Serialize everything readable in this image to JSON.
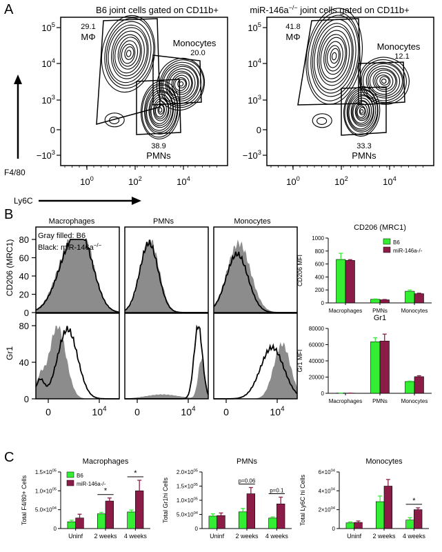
{
  "panels": {
    "A": "A",
    "B": "B",
    "C": "C"
  },
  "colors": {
    "b6": "#33ee33",
    "mir146a": "#8b1c48",
    "histogram_fill": "#8c8c8c",
    "contour": "#000000"
  },
  "section_a": {
    "plots": [
      {
        "title": "B6 joint cells gated on CD11b+",
        "gates": {
          "mphi": {
            "value": "29.1",
            "label": "MΦ"
          },
          "monocytes": {
            "value": "20.0",
            "label": "Monocytes"
          },
          "pmns": {
            "value": "38.9",
            "label": "PMNs"
          }
        }
      },
      {
        "title_prefix": "miR-146a",
        "title_sup": "−/−",
        "title_suffix": " joint cells gated on CD11b+",
        "gates": {
          "mphi": {
            "value": "41.8",
            "label": "MΦ"
          },
          "monocytes": {
            "value": "12.1",
            "label": "Monocytes"
          },
          "pmns": {
            "value": "33.3",
            "label": "PMNs"
          }
        }
      }
    ],
    "y_ticks": [
      {
        "base": "10",
        "exp": "5"
      },
      {
        "base": "10",
        "exp": "4"
      },
      {
        "base": "10",
        "exp": "3"
      },
      {
        "base": "0",
        "exp": ""
      },
      {
        "base": "−10",
        "exp": "3"
      }
    ],
    "x_ticks": [
      {
        "base": "10",
        "exp": "0"
      },
      {
        "base": "10",
        "exp": "2"
      },
      {
        "base": "10",
        "exp": "4"
      }
    ],
    "y_axis_label": "F4/80",
    "x_axis_label": "Ly6C"
  },
  "section_b": {
    "columns": [
      "Macrophages",
      "PMNs",
      "Monocytes"
    ],
    "legend_line1": "Gray filled: B6",
    "legend_line2_prefix": "Black: miR-146a",
    "legend_line2_sup": "−/−",
    "rows": [
      {
        "label": "CD206 (MRC1)",
        "ticks": [
          "80",
          "60",
          "40",
          "20",
          "0"
        ]
      },
      {
        "label": "Gr1",
        "ticks": [
          "80",
          "40",
          "0"
        ]
      }
    ],
    "x_ticks": [
      {
        "base": "0",
        "exp": ""
      },
      {
        "base": "10",
        "exp": "4"
      }
    ]
  },
  "chart_data": [
    {
      "type": "bar",
      "title": "CD206 (MRC1)",
      "ylabel": "CD206 MFI",
      "categories": [
        "Macrophages",
        "PMNs",
        "Monocytes"
      ],
      "ylim": [
        0,
        1000
      ],
      "yticks": [
        0,
        200,
        400,
        600,
        800,
        1000
      ],
      "legend_position": "top-right",
      "series": [
        {
          "name": "B6",
          "values": [
            670,
            55,
            180
          ],
          "errors": [
            95,
            6,
            18
          ]
        },
        {
          "name": "miR-146a-/-",
          "values": [
            655,
            48,
            142
          ],
          "errors": [
            12,
            5,
            8
          ]
        }
      ]
    },
    {
      "type": "bar",
      "title": "Gr1",
      "ylabel": "Gr1 MFI",
      "categories": [
        "Macrophages",
        "PMNs",
        "Monocytes"
      ],
      "ylim": [
        0,
        80000
      ],
      "yticks": [
        0,
        20000,
        40000,
        60000,
        80000
      ],
      "series": [
        {
          "name": "B6",
          "values": [
            300,
            63500,
            14500
          ],
          "errors": [
            60,
            5000,
            600
          ]
        },
        {
          "name": "miR-146a-/-",
          "values": [
            250,
            64500,
            20500
          ],
          "errors": [
            60,
            8500,
            1200
          ]
        }
      ]
    },
    {
      "type": "bar",
      "title": "Macrophages",
      "ylabel": "Total F4/80+ Cells",
      "categories": [
        "Uninf",
        "2 weeks",
        "4 weeks"
      ],
      "ylim": [
        0,
        150000
      ],
      "yticks": [
        0,
        50000,
        100000,
        150000
      ],
      "ytick_labels": [
        "0",
        "5.0×10^04",
        "1.0×10^05",
        "1.5×10^05"
      ],
      "legend_position": "top-left",
      "series": [
        {
          "name": "B6",
          "values": [
            18000,
            39000,
            44000
          ],
          "errors": [
            4000,
            4000,
            5000
          ]
        },
        {
          "name": "miR-146a-/-",
          "values": [
            28000,
            73000,
            100000
          ],
          "errors": [
            10000,
            8000,
            28000
          ]
        }
      ],
      "annotations": [
        {
          "category": "2 weeks",
          "text": "*"
        },
        {
          "category": "4 weeks",
          "text": "*"
        }
      ]
    },
    {
      "type": "bar",
      "title": "PMNs",
      "ylabel": "Total Gr1hi Cells",
      "categories": [
        "Uninf",
        "2 weeks",
        "4 weeks"
      ],
      "ylim": [
        0,
        200000
      ],
      "yticks": [
        0,
        50000,
        100000,
        150000,
        200000
      ],
      "ytick_labels": [
        "0",
        "5.0×10^04",
        "1.0×10^05",
        "1.5×10^05",
        "2.0×10^05"
      ],
      "series": [
        {
          "name": "B6",
          "values": [
            44000,
            59000,
            37000
          ],
          "errors": [
            8000,
            12000,
            4000
          ]
        },
        {
          "name": "miR-146a-/-",
          "values": [
            46000,
            123000,
            87000
          ],
          "errors": [
            9000,
            22000,
            24000
          ]
        }
      ],
      "annotations": [
        {
          "category": "2 weeks",
          "text": "p=0.06"
        },
        {
          "category": "4 weeks",
          "text": "p=0.1"
        }
      ]
    },
    {
      "type": "bar",
      "title": "Monocytes",
      "ylabel": "Total Ly6C hi Cells",
      "categories": [
        "Uninf",
        "2 weeks",
        "4 weeks"
      ],
      "ylim": [
        0,
        60000
      ],
      "yticks": [
        0,
        20000,
        40000,
        60000
      ],
      "ytick_labels": [
        "0",
        "2×10^04",
        "4×10^04",
        "6×10^04"
      ],
      "series": [
        {
          "name": "B6",
          "values": [
            6000,
            28500,
            9000
          ],
          "errors": [
            1000,
            6000,
            2500
          ]
        },
        {
          "name": "miR-146a-/-",
          "values": [
            6500,
            45000,
            20000
          ],
          "errors": [
            1500,
            7000,
            2000
          ]
        }
      ],
      "annotations": [
        {
          "category": "4 weeks",
          "text": "*"
        }
      ]
    }
  ]
}
